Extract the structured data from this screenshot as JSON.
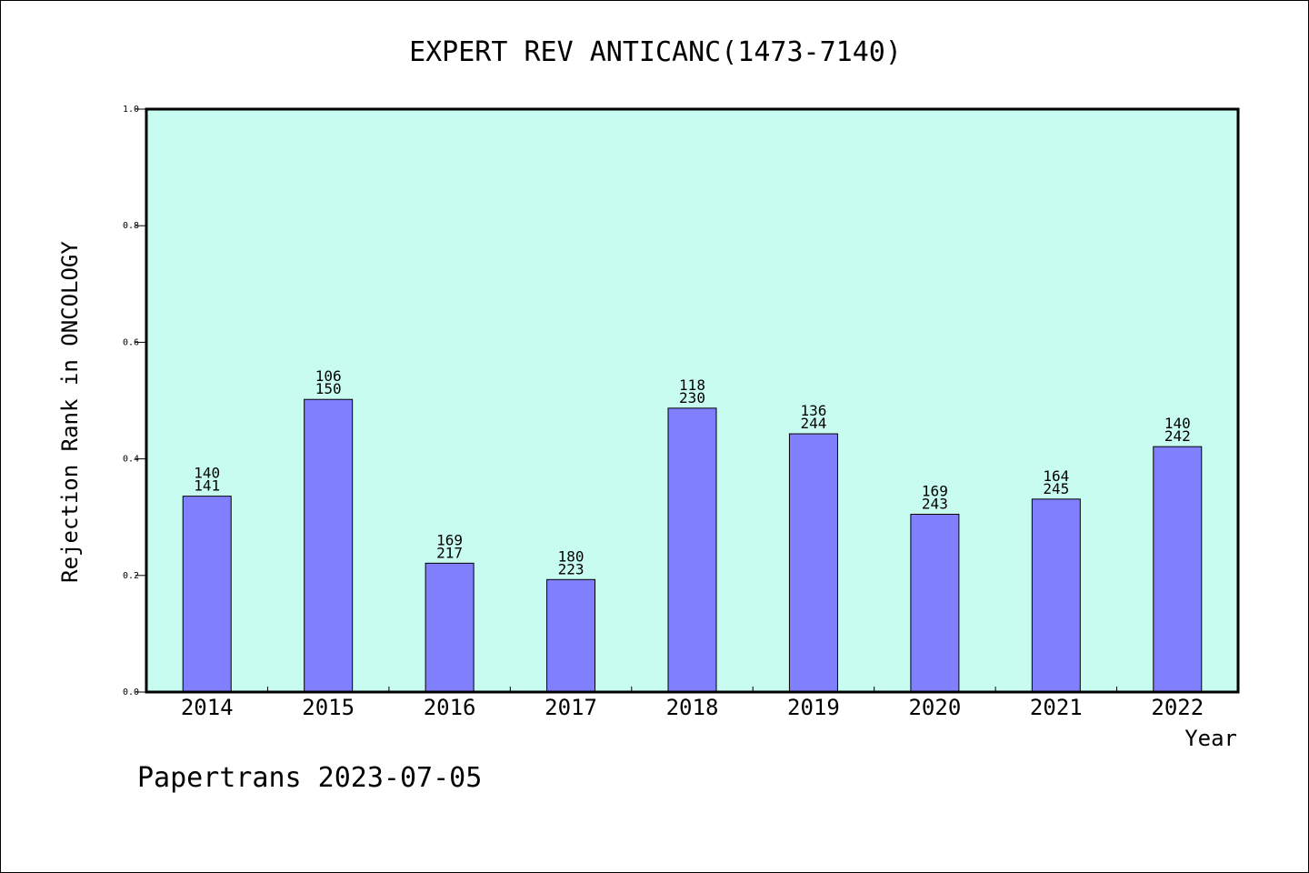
{
  "title": "EXPERT REV ANTICANC(1473-7140)",
  "footer": "Papertrans 2023-07-05",
  "colors": {
    "plot_background": "#c8fcf0",
    "bar_fill": "#8080ff",
    "bar_stroke": "#000000",
    "frame": "#000000"
  },
  "chart_data": {
    "type": "bar",
    "title": "EXPERT REV ANTICANC(1473-7140)",
    "xlabel": "Year",
    "ylabel": "Rejection Rank in ONCOLOGY",
    "ylim": [
      0,
      1.0
    ],
    "yticks": [
      "0.0",
      "0.2",
      "0.4",
      "0.6",
      "0.8",
      "1.0"
    ],
    "grid": false,
    "categories": [
      "2014",
      "2015",
      "2016",
      "2017",
      "2018",
      "2019",
      "2020",
      "2021",
      "2022"
    ],
    "values": [
      0.336,
      0.502,
      0.221,
      0.193,
      0.487,
      0.443,
      0.305,
      0.331,
      0.421
    ],
    "labels_top": [
      "140",
      "106",
      "169",
      "180",
      "118",
      "136",
      "169",
      "164",
      "140"
    ],
    "labels_bottom": [
      "141",
      "150",
      "217",
      "223",
      "230",
      "244",
      "243",
      "245",
      "242"
    ]
  }
}
